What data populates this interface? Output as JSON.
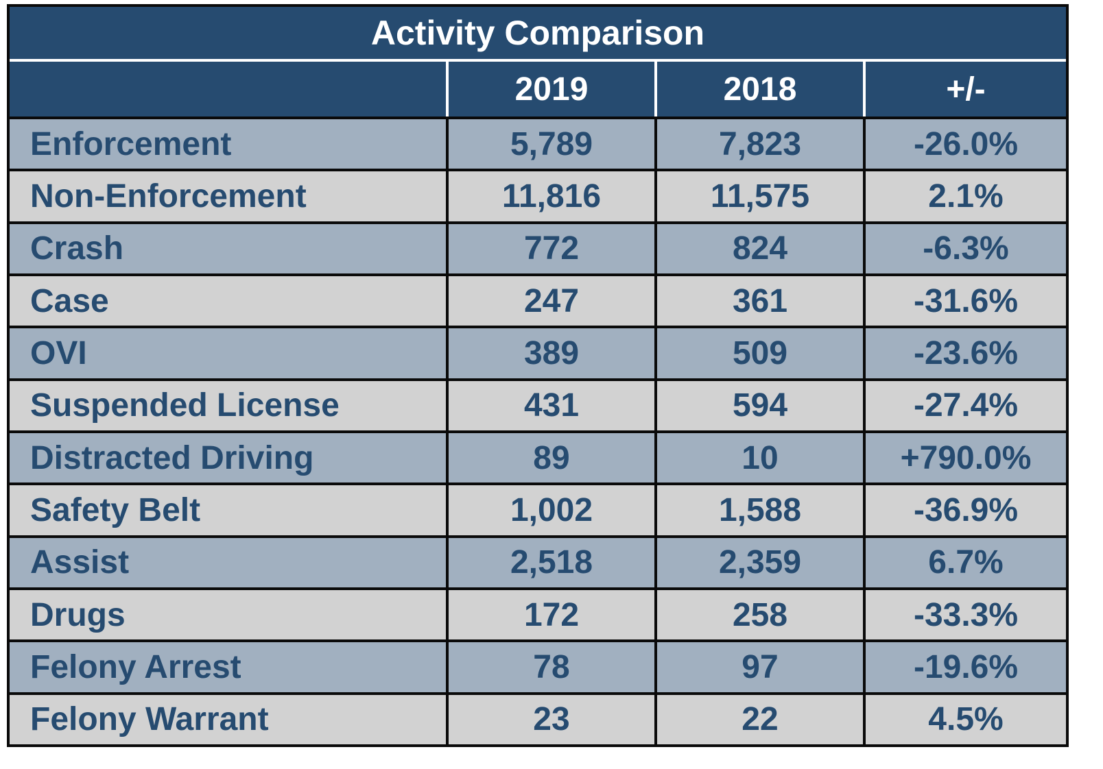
{
  "chart_data": {
    "type": "table",
    "title": "Activity Comparison",
    "columns": [
      "",
      "2019",
      "2018",
      "+/-"
    ],
    "rows": [
      {
        "category": "Enforcement",
        "y2019": "5,789",
        "y2018": "7,823",
        "change": "-26.0%"
      },
      {
        "category": "Non-Enforcement",
        "y2019": "11,816",
        "y2018": "11,575",
        "change": "2.1%"
      },
      {
        "category": "Crash",
        "y2019": "772",
        "y2018": "824",
        "change": "-6.3%"
      },
      {
        "category": "Case",
        "y2019": "247",
        "y2018": "361",
        "change": "-31.6%"
      },
      {
        "category": "OVI",
        "y2019": "389",
        "y2018": "509",
        "change": "-23.6%"
      },
      {
        "category": "Suspended License",
        "y2019": "431",
        "y2018": "594",
        "change": "-27.4%"
      },
      {
        "category": "Distracted Driving",
        "y2019": "89",
        "y2018": "10",
        "change": "+790.0%"
      },
      {
        "category": "Safety Belt",
        "y2019": "1,002",
        "y2018": "1,588",
        "change": "-36.9%"
      },
      {
        "category": "Assist",
        "y2019": "2,518",
        "y2018": "2,359",
        "change": "6.7%"
      },
      {
        "category": "Drugs",
        "y2019": "172",
        "y2018": "258",
        "change": "-33.3%"
      },
      {
        "category": "Felony Arrest",
        "y2019": "78",
        "y2018": "97",
        "change": "-19.6%"
      },
      {
        "category": "Felony Warrant",
        "y2019": "23",
        "y2018": "22",
        "change": "4.5%"
      }
    ]
  },
  "colors": {
    "header_bg": "#264b70",
    "header_text": "#ffffff",
    "row_odd_bg": "#a1b0c0",
    "row_even_bg": "#d2d2d2",
    "body_text": "#264b70",
    "border": "#0a0a0a"
  }
}
